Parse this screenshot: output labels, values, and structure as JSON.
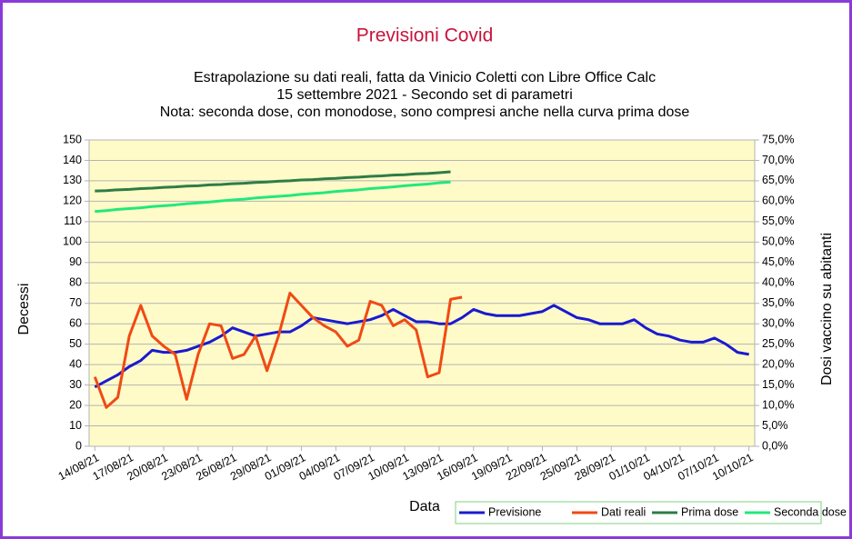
{
  "chart_data": {
    "type": "line",
    "title": "Previsioni Covid",
    "subtitle": [
      "Estrapolazione su dati reali, fatta da Vinicio Coletti con Libre Office Calc",
      "15 settembre 2021 - Secondo set di parametri",
      "Nota: seconda dose, con monodose, sono compresi anche nella curva prima dose"
    ],
    "x_label": "Data",
    "y_label": "Decessi",
    "y2_label": "Dosi vaccino su abitanti",
    "categories": [
      "14/08/21",
      null,
      null,
      "17/08/21",
      null,
      null,
      "20/08/21",
      null,
      null,
      "23/08/21",
      null,
      null,
      "26/08/21",
      null,
      null,
      "29/08/21",
      null,
      null,
      "01/09/21",
      null,
      null,
      "04/09/21",
      null,
      null,
      "07/09/21",
      null,
      null,
      "10/09/21",
      null,
      null,
      "13/09/21",
      null,
      null,
      "16/09/21",
      null,
      null,
      "19/09/21",
      null,
      null,
      "22/09/21",
      null,
      null,
      "25/09/21",
      null,
      null,
      "28/09/21",
      null,
      null,
      "01/10/21",
      null,
      null,
      "04/10/21",
      null,
      null,
      "07/10/21",
      null,
      null,
      "10/10/21"
    ],
    "series": [
      {
        "name": "Previsione",
        "color": "#1a1ad0",
        "values": [
          29,
          32,
          35,
          39,
          42,
          47,
          46,
          46,
          47,
          49,
          51,
          54,
          58,
          56,
          54,
          55,
          56,
          56,
          59,
          63,
          62,
          61,
          60,
          61,
          62,
          64,
          67,
          64,
          61,
          61,
          60,
          60,
          63,
          67,
          65,
          64,
          64,
          64,
          65,
          66,
          69,
          66,
          63,
          62,
          60,
          60,
          60,
          62,
          58,
          55,
          54,
          52,
          51,
          51,
          53,
          50,
          46,
          45
        ]
      },
      {
        "name": "Dati reali",
        "color": "#f04a14",
        "values": [
          34,
          19,
          24,
          54,
          69,
          54,
          49,
          45,
          23,
          45,
          60,
          59,
          43,
          45,
          54,
          37,
          54,
          75,
          69,
          63,
          59,
          56,
          49,
          52,
          71,
          69,
          59,
          62,
          57,
          34,
          36,
          72,
          73,
          null,
          null,
          null,
          null,
          null,
          null,
          null,
          null,
          null,
          null,
          null,
          null,
          null,
          null,
          null,
          null,
          null,
          null,
          null,
          null,
          null,
          null,
          null,
          null,
          null
        ]
      },
      {
        "name": "Prima dose",
        "color": "#2e7d45",
        "axis": "y2",
        "values": [
          62.5,
          62.6,
          62.8,
          62.9,
          63.1,
          63.2,
          63.4,
          63.5,
          63.7,
          63.8,
          64.0,
          64.1,
          64.3,
          64.4,
          64.6,
          64.7,
          64.9,
          65.0,
          65.2,
          65.3,
          65.5,
          65.6,
          65.8,
          65.9,
          66.1,
          66.2,
          66.4,
          66.5,
          66.7,
          66.8,
          67.0,
          67.2,
          null,
          null,
          null,
          null,
          null,
          null,
          null,
          null,
          null,
          null,
          null,
          null,
          null,
          null,
          null,
          null,
          null,
          null,
          null,
          null,
          null,
          null,
          null,
          null,
          null,
          null
        ]
      },
      {
        "name": "Seconda dose",
        "color": "#22e87a",
        "axis": "y2",
        "values": [
          57.5,
          57.7,
          58.0,
          58.2,
          58.4,
          58.7,
          58.9,
          59.1,
          59.4,
          59.6,
          59.8,
          60.1,
          60.3,
          60.5,
          60.8,
          61.0,
          61.2,
          61.4,
          61.7,
          61.9,
          62.1,
          62.4,
          62.6,
          62.8,
          63.1,
          63.3,
          63.5,
          63.8,
          64.0,
          64.2,
          64.5,
          64.7,
          null,
          null,
          null,
          null,
          null,
          null,
          null,
          null,
          null,
          null,
          null,
          null,
          null,
          null,
          null,
          null,
          null,
          null,
          null,
          null,
          null,
          null,
          null,
          null,
          null,
          null
        ]
      }
    ],
    "ylim": [
      0,
      150
    ],
    "yticks": [
      0,
      10,
      20,
      30,
      40,
      50,
      60,
      70,
      80,
      90,
      100,
      110,
      120,
      130,
      140,
      150
    ],
    "y2lim": [
      0,
      75
    ],
    "y2ticks": [
      {
        "value": 0,
        "label": "0,0%"
      },
      {
        "value": 5,
        "label": "5,0%"
      },
      {
        "value": 10,
        "label": "10,0%"
      },
      {
        "value": 15,
        "label": "15,0%"
      },
      {
        "value": 20,
        "label": "20,0%"
      },
      {
        "value": 25,
        "label": "25,0%"
      },
      {
        "value": 30,
        "label": "30,0%"
      },
      {
        "value": 35,
        "label": "35,0%"
      },
      {
        "value": 40,
        "label": "40,0%"
      },
      {
        "value": 45,
        "label": "45,0%"
      },
      {
        "value": 50,
        "label": "50,0%"
      },
      {
        "value": 55,
        "label": "55,0%"
      },
      {
        "value": 60,
        "label": "60,0%"
      },
      {
        "value": 65,
        "label": "65,0%"
      },
      {
        "value": 70,
        "label": "70,0%"
      },
      {
        "value": 75,
        "label": "75,0%"
      }
    ],
    "grid": true,
    "background": "#fffbc8",
    "legend": "bottom-right"
  }
}
